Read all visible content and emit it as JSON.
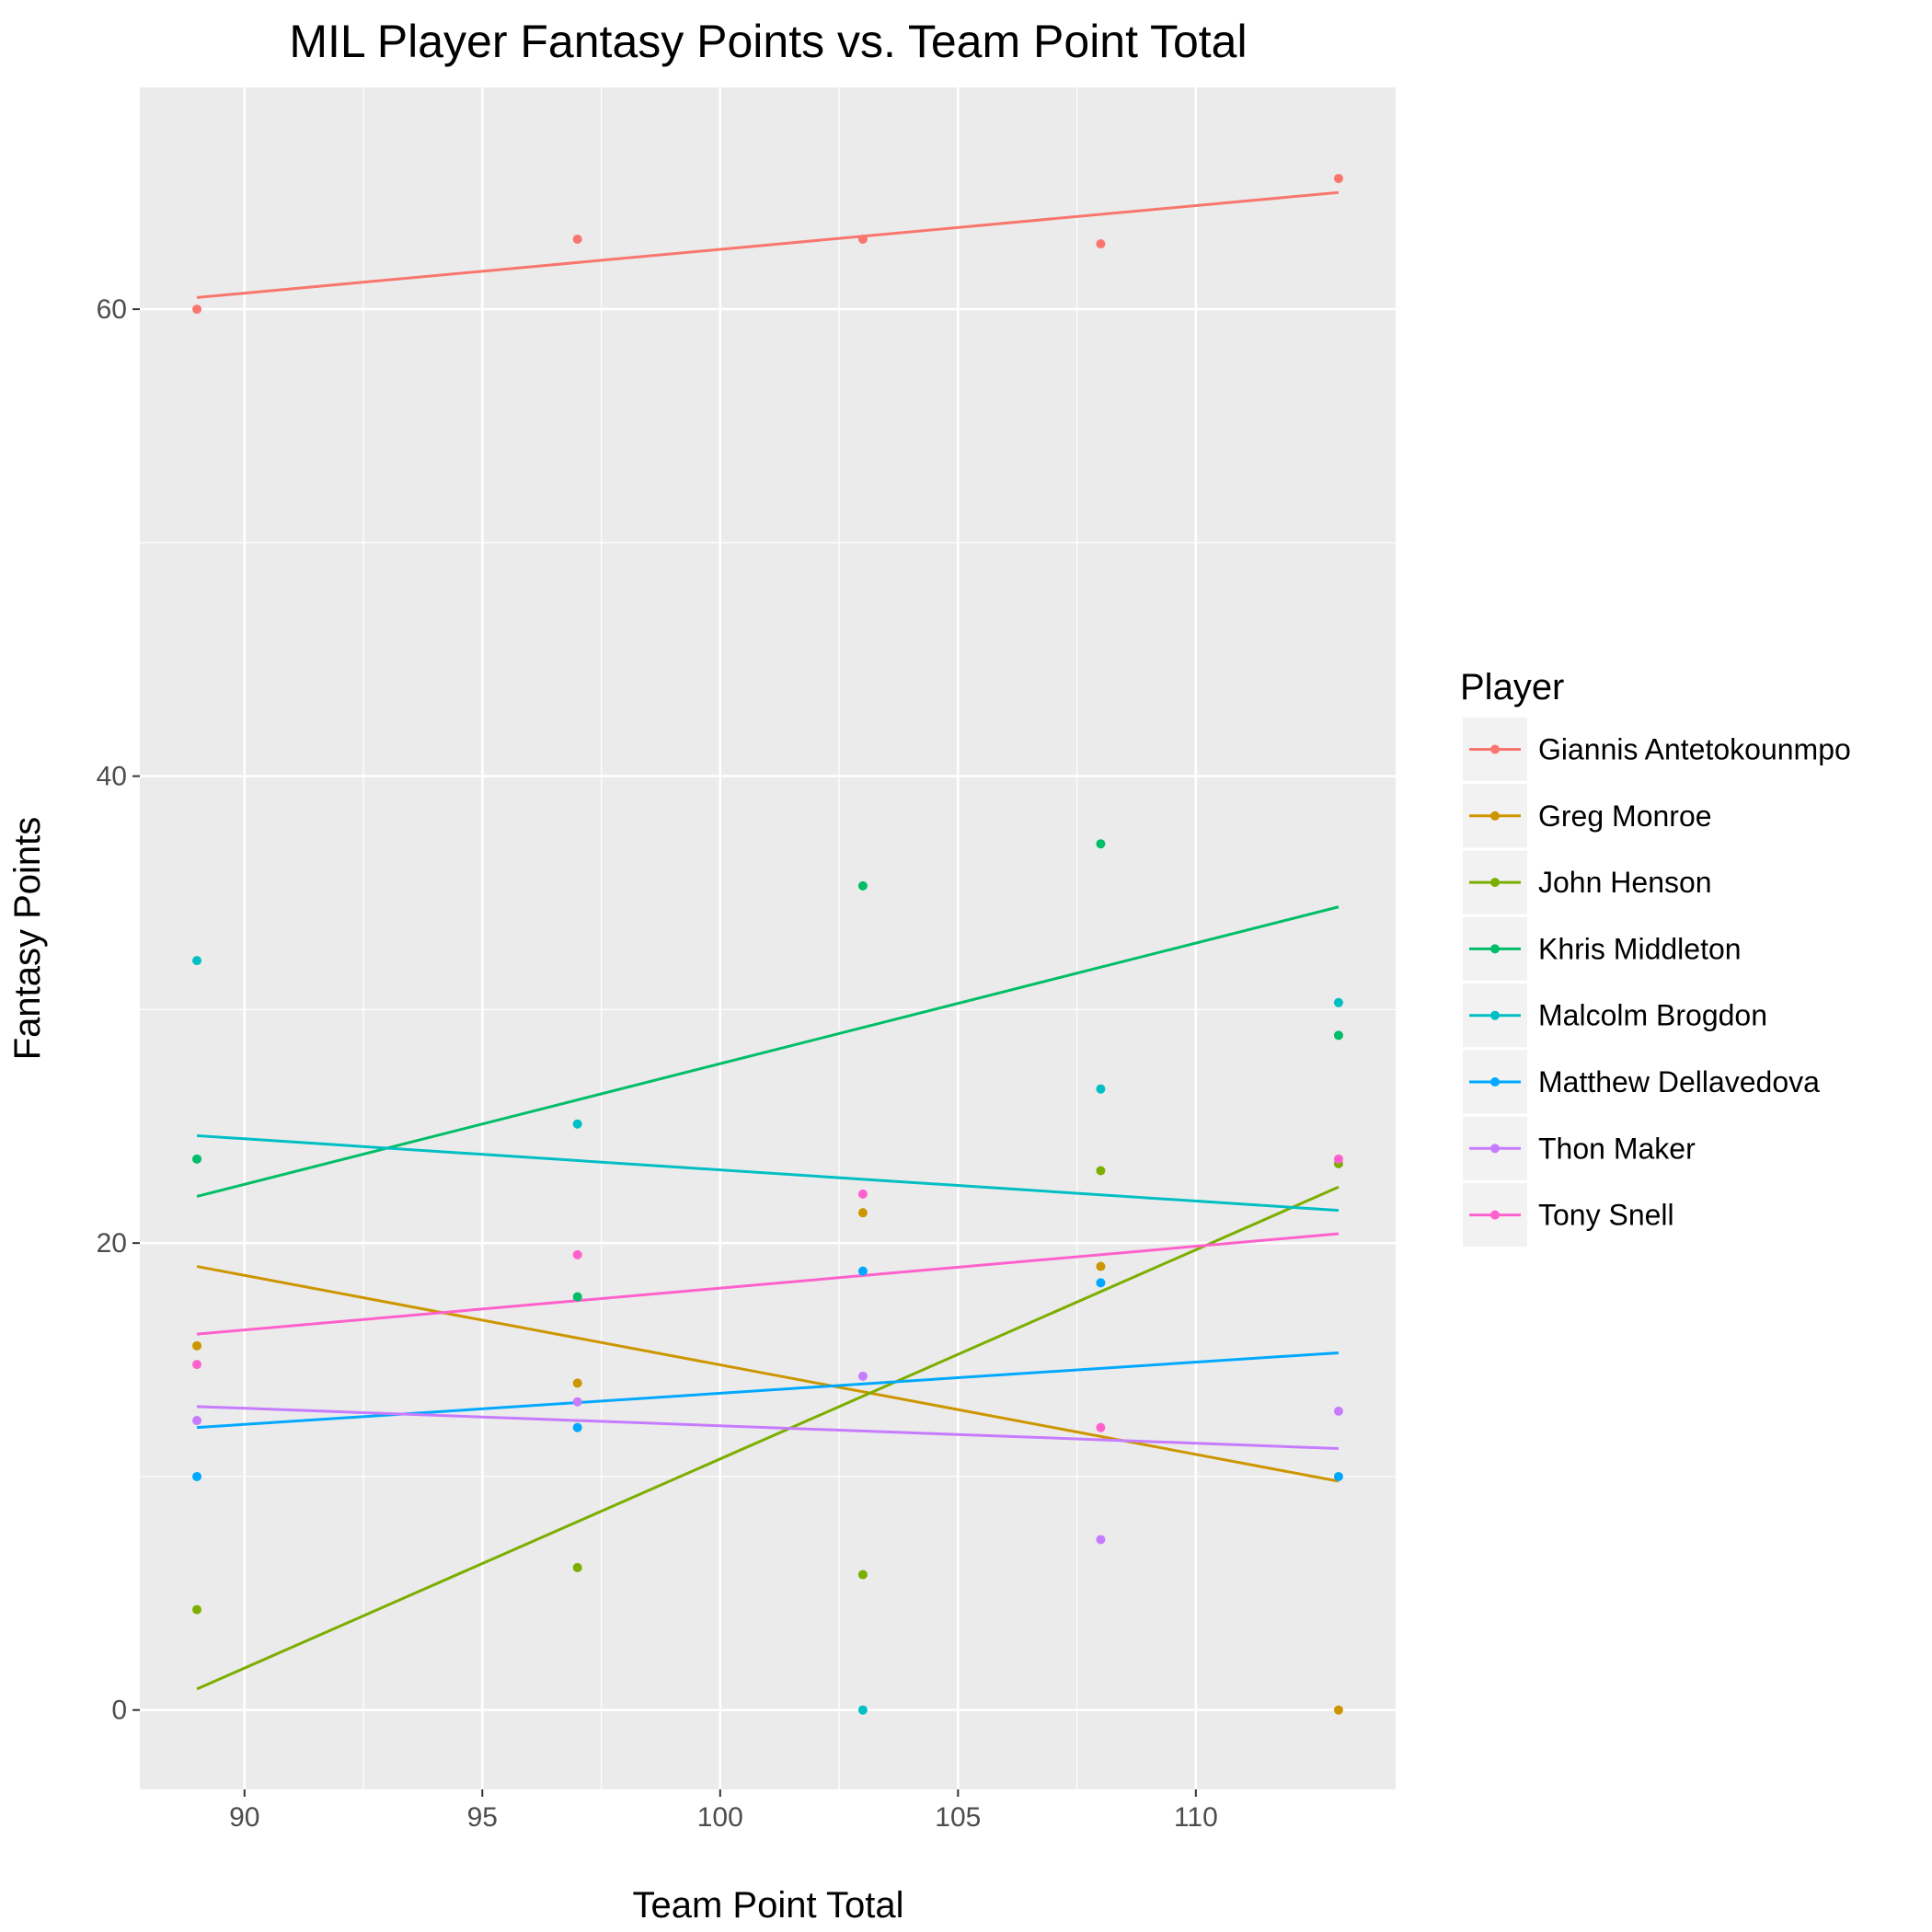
{
  "chart_data": {
    "type": "scatter",
    "title": "MIL Player Fantasy Points vs. Team Point Total",
    "xlabel": "Team Point Total",
    "ylabel": "Fantasy Points",
    "xlim": [
      87.8,
      114.2
    ],
    "ylim": [
      -3.4,
      69.5
    ],
    "x_ticks": [
      90,
      95,
      100,
      105,
      110
    ],
    "y_ticks": [
      0,
      20,
      40,
      60
    ],
    "grid": true,
    "legend": {
      "title": "Player",
      "position": "right"
    },
    "x": [
      89,
      97,
      103,
      108,
      113
    ],
    "series": [
      {
        "name": "Giannis Antetokounmpo",
        "color": "#F8766D",
        "values": [
          60.0,
          63.0,
          63.0,
          62.8,
          65.6
        ],
        "fit": [
          60.5,
          65.0
        ]
      },
      {
        "name": "Greg Monroe",
        "color": "#CD9600",
        "values": [
          15.6,
          14.0,
          21.3,
          19.0,
          0.0
        ],
        "fit": [
          19.0,
          9.8
        ]
      },
      {
        "name": "John Henson",
        "color": "#7CAE00",
        "values": [
          4.3,
          6.1,
          5.8,
          23.1,
          23.4
        ],
        "fit": [
          0.9,
          22.4
        ]
      },
      {
        "name": "Khris Middleton",
        "color": "#00BE67",
        "values": [
          23.6,
          17.7,
          35.3,
          37.1,
          28.9
        ],
        "fit": [
          22.0,
          34.4
        ]
      },
      {
        "name": "Malcolm Brogdon",
        "color": "#00BFC4",
        "values": [
          32.1,
          25.1,
          0.0,
          26.6,
          30.3
        ],
        "fit": [
          24.6,
          21.4
        ]
      },
      {
        "name": "Matthew Dellavedova",
        "color": "#00A9FF",
        "values": [
          10.0,
          12.1,
          18.8,
          18.3,
          10.0
        ],
        "fit": [
          12.1,
          15.3
        ]
      },
      {
        "name": "Thon Maker",
        "color": "#C77CFF",
        "values": [
          12.4,
          13.2,
          14.3,
          7.3,
          12.8
        ],
        "fit": [
          13.0,
          11.2
        ]
      },
      {
        "name": "Tony Snell",
        "color": "#FF61CC",
        "values": [
          14.8,
          19.5,
          22.1,
          12.1,
          23.6
        ],
        "fit": [
          16.1,
          20.4
        ]
      }
    ]
  }
}
